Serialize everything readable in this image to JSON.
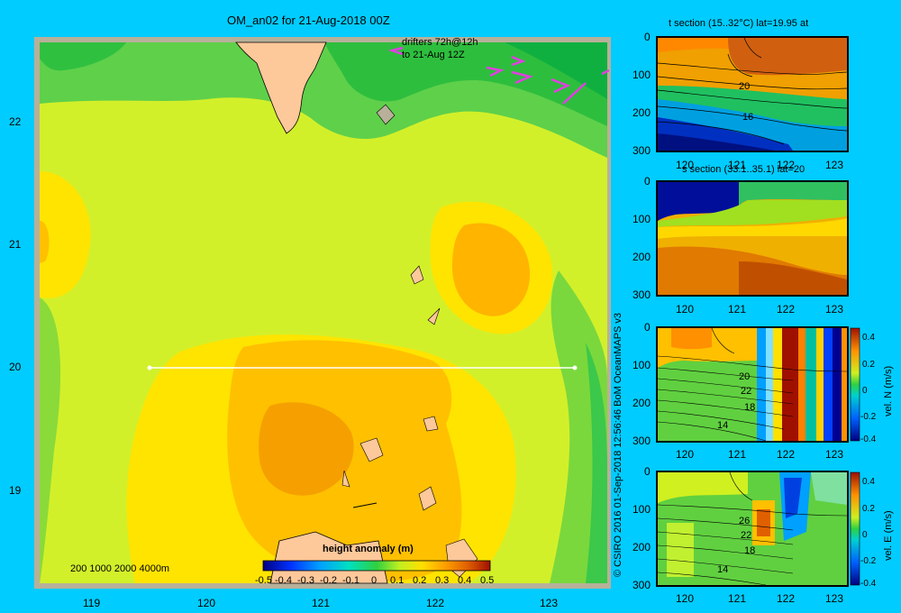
{
  "map": {
    "title": "OM_an02 for 21-Aug-2018 00Z",
    "drifters_line1": "drifters 72h@12h",
    "drifters_line2": "to 21-Aug 12Z",
    "depth_legend": "200  1000  2000  4000m",
    "lat_ticks": [
      "22",
      "21",
      "20",
      "19"
    ],
    "lon_ticks": [
      "119",
      "120",
      "121",
      "122",
      "123"
    ],
    "colorbar_title": "height anomaly (m)",
    "colorbar_ticks": [
      "-0.5",
      "-0.4",
      "-0.3",
      "-0.2",
      "-0.1",
      "0",
      "0.1",
      "0.2",
      "0.3",
      "0.4",
      "0.5"
    ]
  },
  "credit": "© CSIRO 2016   01-Sep-2018 12:56:46 BoM OceanMAPS v3",
  "panels": [
    {
      "title": "t section (15..32°C) lat=19.95 at",
      "depth_ticks": [
        "0",
        "100",
        "200",
        "300"
      ],
      "lon_ticks": [
        "120",
        "121",
        "122",
        "123"
      ],
      "contour_labels": [
        "20",
        "16"
      ]
    },
    {
      "title": "s section (33.1..35.1) lat=20",
      "depth_ticks": [
        "0",
        "100",
        "200",
        "300"
      ],
      "lon_ticks": [
        "120",
        "121",
        "122",
        "123"
      ],
      "contour_labels": []
    },
    {
      "title": "",
      "depth_ticks": [
        "0",
        "100",
        "200",
        "300"
      ],
      "lon_ticks": [
        "120",
        "121",
        "122",
        "123"
      ],
      "contour_labels": [
        "20",
        "22",
        "18",
        "14"
      ],
      "colorbar_label": "vel. N (m/s)",
      "colorbar_ticks": [
        "0.4",
        "0.2",
        "0",
        "-0.2",
        "-0.4"
      ]
    },
    {
      "title": "",
      "depth_ticks": [
        "0",
        "100",
        "200",
        "300"
      ],
      "lon_ticks": [
        "120",
        "121",
        "122",
        "123"
      ],
      "contour_labels": [
        "26",
        "22",
        "18",
        "14"
      ],
      "colorbar_label": "vel. E (m/s)",
      "colorbar_ticks": [
        "0.4",
        "0.2",
        "0",
        "-0.2",
        "-0.4"
      ]
    }
  ]
}
